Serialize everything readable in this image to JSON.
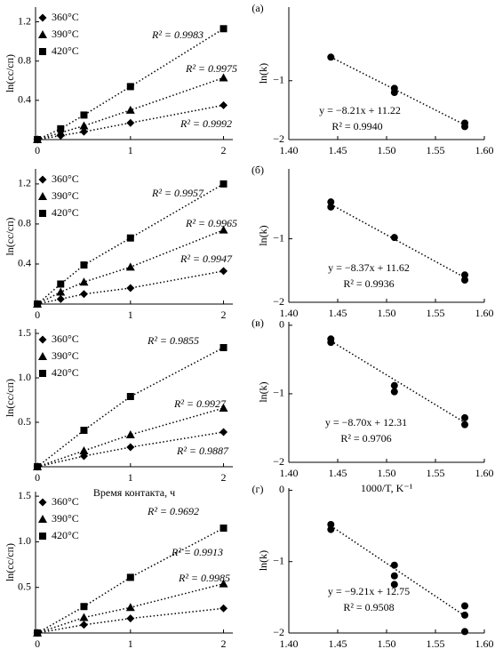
{
  "chart_data": [
    {
      "type": "line",
      "ylabel": "ln(cс/cп)",
      "x": [
        0,
        0.25,
        0.5,
        1,
        2
      ],
      "xlim": [
        -0.02,
        2.1
      ],
      "xticks": [
        0,
        1,
        2
      ],
      "ylim": [
        0,
        1.35
      ],
      "yticks": [
        0.4,
        0.8,
        1.2
      ],
      "line_style": "dotted",
      "legend": "upper left",
      "series": [
        {
          "name": "360°C",
          "color": "#000000",
          "marker": "diamond",
          "values": [
            0,
            0.04,
            0.08,
            0.17,
            0.35
          ],
          "annotation": "R² = 0.9992"
        },
        {
          "name": "390°C",
          "color": "#000000",
          "marker": "triangle",
          "values": [
            0,
            0.07,
            0.14,
            0.3,
            0.63
          ],
          "annotation": "R² = 0.9975"
        },
        {
          "name": "420°C",
          "color": "#000000",
          "marker": "square",
          "values": [
            0,
            0.11,
            0.25,
            0.54,
            1.13
          ],
          "annotation": "R² = 0.9983"
        }
      ]
    },
    {
      "type": "scatter",
      "panel_label": "(а)",
      "ylabel": "ln(k)",
      "color": "#000000",
      "x": [
        1.443,
        1.508,
        1.508,
        1.58,
        1.58
      ],
      "values": [
        -0.6,
        -1.13,
        -1.2,
        -1.72,
        -1.78
      ],
      "trendline": {
        "x": [
          1.443,
          1.58
        ],
        "values": [
          -0.6,
          -1.75
        ]
      },
      "annotations": [
        "y = −8.21x + 11.22",
        "R² = 0.9940"
      ],
      "xlim": [
        1.4,
        1.6
      ],
      "xticks": [
        {
          "value": 1.4,
          "label": "1.40"
        },
        1.45,
        {
          "value": 1.5,
          "label": "1.50"
        },
        1.55,
        {
          "value": 1.6,
          "label": "1.60"
        }
      ],
      "ylim": [
        -2,
        0.25
      ],
      "yticks": [
        {
          "value": -1,
          "label": "−1"
        },
        {
          "value": -2,
          "label": "−2"
        }
      ]
    },
    {
      "type": "line",
      "ylabel": "ln(cс/cп)",
      "x": [
        0,
        0.25,
        0.5,
        1,
        2
      ],
      "xlim": [
        -0.02,
        2.1
      ],
      "xticks": [
        0,
        1,
        2
      ],
      "ylim": [
        0,
        1.35
      ],
      "yticks": [
        0.4,
        0.8,
        1.2
      ],
      "line_style": "dotted",
      "legend": "upper left",
      "series": [
        {
          "name": "360°C",
          "color": "#000000",
          "marker": "diamond",
          "values": [
            0,
            0.05,
            0.1,
            0.16,
            0.33
          ],
          "annotation": "R² = 0.9947"
        },
        {
          "name": "390°C",
          "color": "#000000",
          "marker": "triangle",
          "values": [
            0,
            0.12,
            0.22,
            0.37,
            0.74
          ],
          "annotation": "R² = 0.9965"
        },
        {
          "name": "420°C",
          "color": "#000000",
          "marker": "square",
          "values": [
            0,
            0.2,
            0.39,
            0.66,
            1.2
          ],
          "annotation": "R² = 0.9957"
        }
      ]
    },
    {
      "type": "scatter",
      "panel_label": "(б)",
      "ylabel": "ln(k)",
      "color": "#000000",
      "x": [
        1.443,
        1.443,
        1.508,
        1.58,
        1.58
      ],
      "values": [
        -0.42,
        -0.5,
        -0.98,
        -1.57,
        -1.65
      ],
      "trendline": {
        "x": [
          1.443,
          1.58
        ],
        "values": [
          -0.46,
          -1.61
        ]
      },
      "annotations": [
        "y = −8.37x + 11.62",
        "R² = 0.9936"
      ],
      "xlim": [
        1.4,
        1.6
      ],
      "xticks": [
        {
          "value": 1.4,
          "label": "1.40"
        },
        1.45,
        {
          "value": 1.5,
          "label": "1.50"
        },
        1.55,
        {
          "value": 1.6,
          "label": "1.60"
        }
      ],
      "ylim": [
        -2,
        0.1
      ],
      "yticks": [
        {
          "value": -1,
          "label": "−1"
        },
        {
          "value": -2,
          "label": "−2"
        }
      ]
    },
    {
      "type": "line",
      "ylabel": "ln(cс/cп)",
      "xlabel": "Время контакта, ч",
      "x": [
        0,
        0.5,
        1,
        2
      ],
      "xlim": [
        -0.02,
        2.1
      ],
      "xticks": [
        0,
        1,
        2
      ],
      "ylim": [
        0,
        1.55
      ],
      "yticks": [
        0.5,
        {
          "value": 1,
          "label": "1.0"
        },
        1.5
      ],
      "line_style": "dotted",
      "legend": "upper left",
      "series": [
        {
          "name": "360°C",
          "color": "#000000",
          "marker": "diamond",
          "values": [
            0,
            0.12,
            0.22,
            0.39
          ],
          "annotation": "R² = 0.9887"
        },
        {
          "name": "390°C",
          "color": "#000000",
          "marker": "triangle",
          "values": [
            0,
            0.18,
            0.36,
            0.66
          ],
          "annotation": "R² = 0.9927"
        },
        {
          "name": "420°C",
          "color": "#000000",
          "marker": "square",
          "values": [
            0,
            0.41,
            0.79,
            1.34
          ],
          "annotation": "R² = 0.9855"
        }
      ]
    },
    {
      "type": "scatter",
      "panel_label": "(в)",
      "ylabel": "ln(k)",
      "xlabel": "1000/T, K⁻¹",
      "color": "#000000",
      "x": [
        1.443,
        1.443,
        1.508,
        1.508,
        1.58,
        1.58
      ],
      "values": [
        -0.2,
        -0.25,
        -0.88,
        -0.97,
        -1.35,
        -1.45
      ],
      "trendline": {
        "x": [
          1.443,
          1.58
        ],
        "values": [
          -0.23,
          -1.42
        ]
      },
      "annotations": [
        "y = −8.70x + 12.31",
        "R² = 0.9706"
      ],
      "xlim": [
        1.4,
        1.6
      ],
      "xticks": [
        {
          "value": 1.4,
          "label": "1.40"
        },
        1.45,
        {
          "value": 1.5,
          "label": "1.50"
        },
        1.55,
        {
          "value": 1.6,
          "label": "1.60"
        }
      ],
      "ylim": [
        -2,
        0.05
      ],
      "yticks": [
        0,
        {
          "value": -1,
          "label": "−1"
        },
        {
          "value": -2,
          "label": "−2"
        }
      ]
    },
    {
      "type": "line",
      "ylabel": "ln(cс/cп)",
      "x": [
        0,
        0.5,
        1,
        2
      ],
      "xlim": [
        -0.02,
        2.1
      ],
      "xticks": [
        0,
        1,
        2
      ],
      "ylim": [
        0,
        1.55
      ],
      "yticks": [
        0.5,
        {
          "value": 1,
          "label": "1.0"
        },
        1.5
      ],
      "line_style": "dotted",
      "legend": "upper left",
      "series": [
        {
          "name": "360°C",
          "color": "#000000",
          "marker": "diamond",
          "values": [
            0,
            0.09,
            0.16,
            0.27
          ],
          "annotation": "R² = 0.9985"
        },
        {
          "name": "390°C",
          "color": "#000000",
          "marker": "triangle",
          "values": [
            0,
            0.17,
            0.28,
            0.54
          ],
          "annotation": "R² = 0.9913"
        },
        {
          "name": "420°C",
          "color": "#000000",
          "marker": "square",
          "values": [
            0,
            0.29,
            0.61,
            1.15
          ],
          "annotation": "R² = 0.9692"
        }
      ]
    },
    {
      "type": "scatter",
      "panel_label": "(г)",
      "ylabel": "ln(k)",
      "color": "#000000",
      "x": [
        1.443,
        1.443,
        1.508,
        1.508,
        1.508,
        1.58,
        1.58,
        1.58
      ],
      "values": [
        -0.48,
        -0.55,
        -1.05,
        -1.2,
        -1.32,
        -1.62,
        -1.75,
        -1.98
      ],
      "trendline": {
        "x": [
          1.443,
          1.58
        ],
        "values": [
          -0.5,
          -1.76
        ]
      },
      "annotations": [
        "y = −9.21x + 12.75",
        "R² = 0.9508"
      ],
      "xlim": [
        1.4,
        1.6
      ],
      "xticks": [
        {
          "value": 1.4,
          "label": "1.40"
        },
        1.45,
        {
          "value": 1.5,
          "label": "1.50"
        },
        1.55,
        {
          "value": 1.6,
          "label": "1.60"
        }
      ],
      "ylim": [
        -2,
        0.03
      ],
      "yticks": [
        0,
        {
          "value": -1,
          "label": "−1"
        },
        {
          "value": -2,
          "label": "−2"
        }
      ]
    }
  ]
}
